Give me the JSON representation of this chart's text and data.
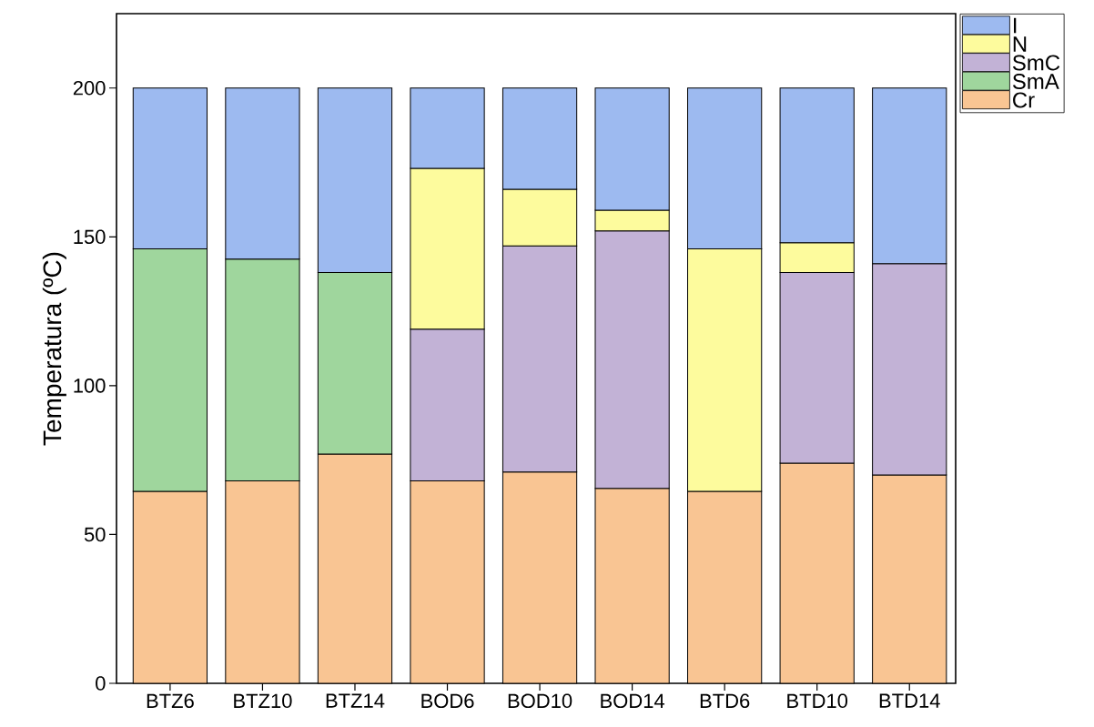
{
  "chart_data": {
    "type": "bar",
    "stacked": true,
    "ylabel": "Temperatura (ºC)",
    "categories": [
      "BTZ6",
      "BTZ10",
      "BTZ14",
      "BOD6",
      "BOD10",
      "BOD14",
      "BTD6",
      "BTD10",
      "BTD14"
    ],
    "series": [
      {
        "name": "Cr",
        "color": "#f9c593",
        "values": [
          64.5,
          68,
          77,
          68,
          71,
          65.5,
          64.5,
          74,
          70
        ]
      },
      {
        "name": "SmA",
        "color": "#9fd69d",
        "values": [
          81.5,
          74.5,
          61,
          null,
          null,
          null,
          null,
          null,
          null
        ]
      },
      {
        "name": "SmC",
        "color": "#c2b2d6",
        "values": [
          null,
          null,
          null,
          51,
          76,
          86.5,
          null,
          64,
          71
        ]
      },
      {
        "name": "N",
        "color": "#fdfb9d",
        "values": [
          null,
          null,
          null,
          54,
          19,
          7,
          81.5,
          10,
          null
        ]
      },
      {
        "name": "I",
        "color": "#9dbaf0",
        "values": [
          54,
          57.5,
          62,
          27,
          34,
          41,
          54,
          52,
          59
        ]
      }
    ],
    "ylim": [
      0,
      225
    ],
    "yticks": [
      0,
      50,
      100,
      150,
      200
    ],
    "legend": "top right"
  }
}
